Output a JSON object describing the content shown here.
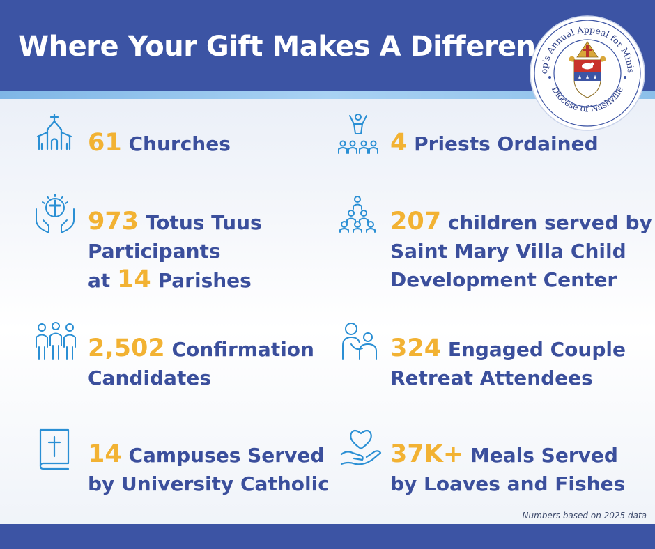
{
  "header": {
    "title": "Where Your Gift Makes A Difference"
  },
  "seal": {
    "arc_top": "Bishop's Annual Appeal for Ministries",
    "arc_bottom": "Diocese of Nashville"
  },
  "stats": [
    {
      "icon": "church-icon",
      "number": "61",
      "text": "Churches"
    },
    {
      "icon": "priest-ordination-icon",
      "number": "4",
      "text": "Priests Ordained"
    },
    {
      "icon": "praying-hands-cross-icon",
      "number": "973",
      "text": "Totus Tuus",
      "line2": "Participants",
      "line3_prefix": "at",
      "number2": "14",
      "line3_suffix": "Parishes"
    },
    {
      "icon": "children-group-icon",
      "number": "207",
      "text": "children served by",
      "line2": "Saint Mary Villa Child",
      "line3": "Development Center"
    },
    {
      "icon": "people-group-icon",
      "number": "2,502",
      "text": "Confirmation",
      "line2": "Candidates"
    },
    {
      "icon": "couple-icon",
      "number": "324",
      "text": "Engaged Couple",
      "line2": "Retreat Attendees"
    },
    {
      "icon": "bible-icon",
      "number": "14",
      "text": "Campuses Served",
      "line2": "by University Catholic"
    },
    {
      "icon": "heart-hand-icon",
      "number": "37K+",
      "text": "Meals Served",
      "line2": "by Loaves and Fishes"
    }
  ],
  "footnote": "Numbers based on 2025 data",
  "colors": {
    "header_blue": "#3c54a4",
    "text_blue": "#3b4f9c",
    "accent_gold": "#f2b233",
    "icon_blue": "#2a8fd4"
  }
}
